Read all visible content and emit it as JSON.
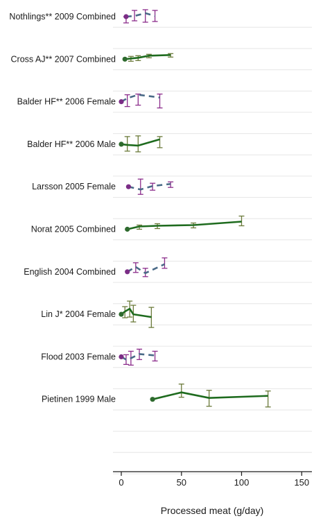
{
  "chart_data": {
    "type": "line",
    "title": "",
    "xlabel": "Processed meat (g/day)",
    "ylabel": "",
    "xlim": [
      -7,
      157
    ],
    "xticks": [
      0,
      50,
      100,
      150
    ],
    "grid": true,
    "colors": {
      "Combined": "#1e6b1e",
      "Female": "#7b2d86",
      "Male": "#1e6b1e",
      "dashed_line": "#4a6a87",
      "error_bar_green": "#6b7a3a",
      "error_bar_purple": "#8b2c8b",
      "grid": "#e6e6e6",
      "axis": "#1a1a1a"
    },
    "series": [
      {
        "label": "Nothlings** 2009 Combined",
        "style": "dashed",
        "marker_color": "#7b2d86",
        "bar_color": "#8b2c8b",
        "x": [
          4,
          11,
          20,
          28
        ],
        "y": [
          0,
          0.1,
          0.5,
          0.1
        ],
        "lo": [
          -0.9,
          -0.6,
          -0.8,
          -0.7
        ],
        "hi": [
          null,
          0.9,
          1.0,
          0.9
        ]
      },
      {
        "label": "Cross AJ** 2007 Combined",
        "style": "solid",
        "marker_color": "#2e6a2e",
        "bar_color": "#6b7a3a",
        "x": [
          3,
          8,
          14,
          23,
          41
        ],
        "y": [
          0,
          0.1,
          0.2,
          0.5,
          0.6
        ],
        "lo": [
          null,
          -0.3,
          -0.2,
          0.2,
          0.3
        ],
        "hi": [
          null,
          0.4,
          0.5,
          0.7,
          0.8
        ]
      },
      {
        "label": "Balder HF** 2006 Female",
        "style": "dashed",
        "marker_color": "#7b2d86",
        "bar_color": "#8b2c8b",
        "x": [
          0,
          5,
          14,
          32
        ],
        "y": [
          0,
          0.5,
          1.0,
          0.6
        ],
        "lo": [
          null,
          -0.7,
          -0.5,
          -0.9
        ],
        "hi": [
          null,
          1.0,
          1.1,
          1.1
        ]
      },
      {
        "label": "Balder HF** 2006 Male",
        "style": "solid",
        "marker_color": "#2e6a2e",
        "bar_color": "#6b7a3a",
        "x": [
          0,
          5,
          14,
          32
        ],
        "y": [
          0,
          -0.1,
          -0.2,
          0.7
        ],
        "lo": [
          null,
          -1.0,
          -1.1,
          -0.5
        ],
        "hi": [
          null,
          1.1,
          1.2,
          1.1
        ]
      },
      {
        "label": "Larsson 2005 Female",
        "style": "dashed",
        "marker_color": "#7b2d86",
        "bar_color": "#8b2c8b",
        "x": [
          6,
          16,
          26,
          41
        ],
        "y": [
          0,
          -0.4,
          0.1,
          0.4
        ],
        "lo": [
          null,
          -1.1,
          -0.5,
          -0.1
        ],
        "hi": [
          null,
          1.1,
          0.5,
          0.7
        ]
      },
      {
        "label": "Norat 2005 Combined",
        "style": "solid",
        "marker_color": "#2e6a2e",
        "bar_color": "#6b7a3a",
        "x": [
          5,
          15,
          30,
          60,
          100
        ],
        "y": [
          0,
          0.4,
          0.5,
          0.6,
          1.1
        ],
        "lo": [
          null,
          0,
          0.1,
          0.2,
          0.5
        ],
        "hi": [
          null,
          0.6,
          0.8,
          0.9,
          1.9
        ]
      },
      {
        "label": "English 2004 Combined",
        "style": "dashed",
        "marker_color": "#7b2d86",
        "bar_color": "#8b2c8b",
        "x": [
          5,
          12,
          20,
          36
        ],
        "y": [
          0,
          0.7,
          -0.2,
          1.1
        ],
        "lo": [
          null,
          -0.1,
          -0.7,
          0.5
        ],
        "hi": [
          null,
          1.3,
          0.5,
          2.0
        ]
      },
      {
        "label": "Lin J* 2004 Female",
        "style": "solid",
        "marker_color": "#2e6a2e",
        "bar_color": "#6b7a3a",
        "x": [
          0,
          3,
          7,
          10,
          25
        ],
        "y": [
          0,
          0.4,
          0.8,
          0,
          -0.4
        ],
        "lo": [
          null,
          -0.5,
          -0.4,
          -1.1,
          -1.9
        ],
        "hi": [
          null,
          1.1,
          1.9,
          1.3,
          1.0
        ]
      },
      {
        "label": "Flood 2003 Female",
        "style": "dashed",
        "marker_color": "#7b2d86",
        "bar_color": "#8b2c8b",
        "x": [
          0,
          4,
          8,
          15,
          28
        ],
        "y": [
          0,
          -0.4,
          -0.2,
          0.4,
          0.2
        ],
        "lo": [
          null,
          -1.1,
          -1.2,
          -0.4,
          -0.6
        ],
        "hi": [
          null,
          0.3,
          0.8,
          1.1,
          0.8
        ]
      },
      {
        "label": "Pietinen 1999 Male",
        "style": "solid",
        "marker_color": "#2e6a2e",
        "bar_color": "#6b7a3a",
        "x": [
          26,
          50,
          73,
          122
        ],
        "y": [
          0,
          1.0,
          0.2,
          0.5
        ],
        "lo": [
          null,
          0.3,
          -1.0,
          -1.1
        ],
        "hi": [
          null,
          2.2,
          1.3,
          1.2
        ]
      }
    ]
  }
}
